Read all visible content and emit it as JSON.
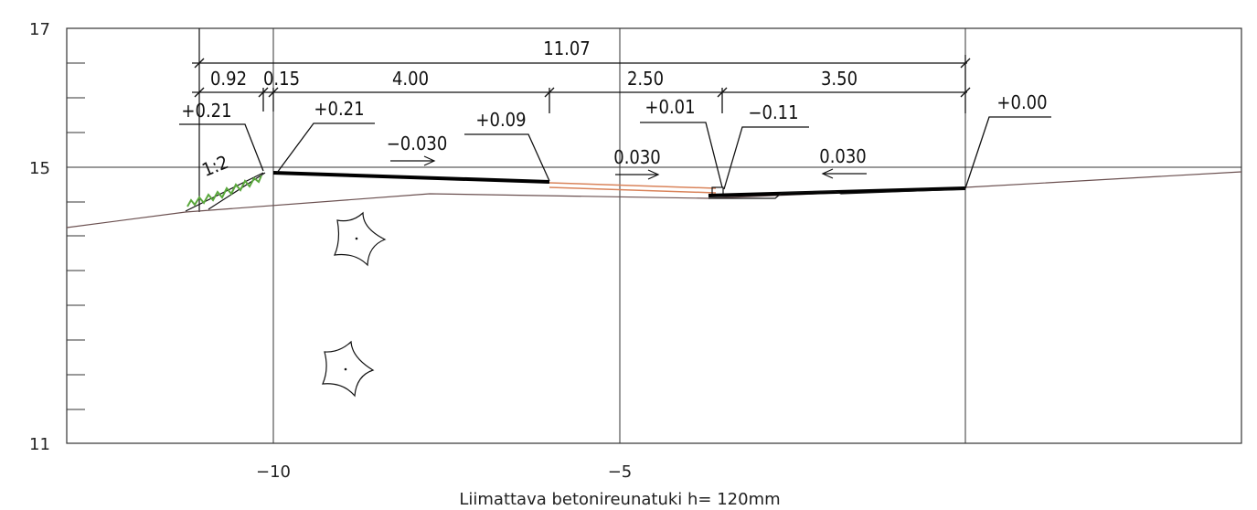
{
  "axes": {
    "y_ticks": [
      "17",
      "15",
      "11"
    ],
    "x_ticks": [
      "−10",
      "−5"
    ]
  },
  "caption": "Liimattava betonireunatuki h= 120mm",
  "dimensions": {
    "total": "11.07",
    "d1": "0.92",
    "d2": "0.15",
    "d3": "4.00",
    "d4": "2.50",
    "d5": "3.50"
  },
  "elevations": {
    "e1": "+0.21",
    "e2": "+0.21",
    "e3": "+0.09",
    "e4": "+0.01",
    "e5": "−0.11",
    "e6": "+0.00"
  },
  "slopes": {
    "s1": "−0.030",
    "s2": "0.030",
    "s3": "0.030",
    "embankment": "1:2"
  },
  "colors": {
    "grass": "#5aa83c",
    "curb": "#d9835a",
    "ground": "#6b5050"
  }
}
